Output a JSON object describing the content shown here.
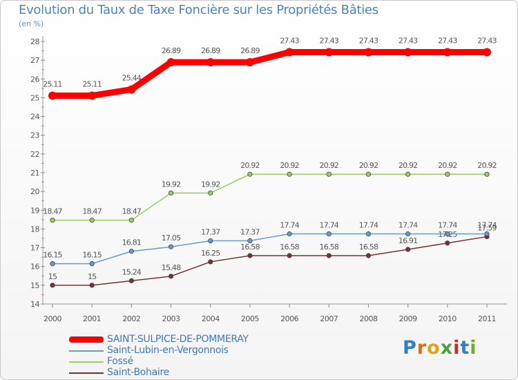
{
  "chart_data": {
    "type": "line",
    "title": "Evolution du Taux de Taxe Foncière sur les Propriétés Bâties",
    "ylabel": "(en %)",
    "xlabel": "",
    "ylim": [
      14,
      28
    ],
    "yticks": [
      14,
      15,
      16,
      17,
      18,
      19,
      20,
      21,
      22,
      23,
      24,
      25,
      26,
      27,
      28
    ],
    "categories": [
      "2000",
      "2001",
      "2002",
      "2003",
      "2004",
      "2005",
      "2006",
      "2007",
      "2008",
      "2009",
      "2010",
      "2011"
    ],
    "series": [
      {
        "name": "SAINT-SULPICE-DE-POMMERAY",
        "color": "#ff0000",
        "values": [
          25.11,
          25.11,
          25.44,
          26.89,
          26.89,
          26.89,
          27.43,
          27.43,
          27.43,
          27.43,
          27.43,
          27.43
        ],
        "labels": [
          "25.11",
          "25.11",
          "25.44",
          "26.89",
          "26.89",
          "26.89",
          "27.43",
          "27.43",
          "27.43",
          "27.43",
          "27.43",
          "27.43"
        ]
      },
      {
        "name": "Saint-Lubin-en-Vergonnois",
        "color": "#6699cc",
        "values": [
          16.15,
          16.15,
          16.81,
          17.05,
          17.37,
          17.37,
          17.74,
          17.74,
          17.74,
          17.74,
          17.74,
          17.74
        ],
        "labels": [
          "16.15",
          "16.15",
          "16.81",
          "17.05",
          "17.37",
          "17.37",
          "17.74",
          "17.74",
          "17.74",
          "17.74",
          "17.74",
          "17.74"
        ]
      },
      {
        "name": "Fossé",
        "color": "#99cc66",
        "values": [
          18.47,
          18.47,
          18.47,
          19.92,
          19.92,
          20.92,
          20.92,
          20.92,
          20.92,
          20.92,
          20.92,
          20.92
        ],
        "labels": [
          "18.47",
          "18.47",
          "18.47",
          "19.92",
          "19.92",
          "20.92",
          "20.92",
          "20.92",
          "20.92",
          "20.92",
          "20.92",
          "20.92"
        ]
      },
      {
        "name": "Saint-Bohaire",
        "color": "#7a2f2f",
        "values": [
          15,
          15,
          15.24,
          15.48,
          16.25,
          16.58,
          16.58,
          16.58,
          16.58,
          16.91,
          17.25,
          17.59
        ],
        "labels": [
          "15",
          "15",
          "15.24",
          "15.48",
          "16.25",
          "16.58",
          "16.58",
          "16.58",
          "16.58",
          "16.91",
          "17.25",
          "17.59"
        ]
      }
    ],
    "legend": "bottom-left",
    "grid": false
  },
  "logo": {
    "letters": [
      "P",
      "r",
      "o",
      "x",
      "i",
      "t",
      "i"
    ]
  }
}
